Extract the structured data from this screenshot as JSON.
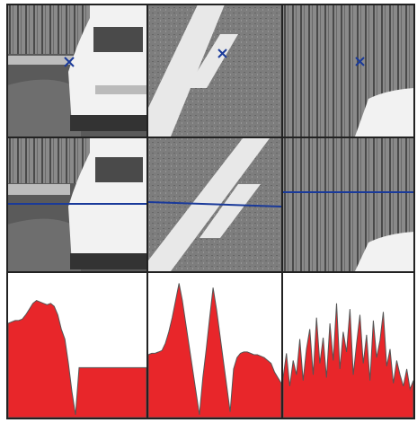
{
  "chart_data": [
    {
      "type": "area",
      "color": "#e8262a",
      "ylim": [
        0,
        100
      ],
      "values": [
        66,
        67,
        68,
        68,
        69,
        72,
        76,
        80,
        82,
        81,
        80,
        79,
        80,
        78,
        72,
        62,
        55,
        38,
        18,
        2,
        35,
        35,
        35,
        35,
        35,
        35,
        35,
        35,
        35,
        35,
        35,
        35,
        35,
        35,
        35,
        35,
        35,
        35,
        35,
        35
      ]
    },
    {
      "type": "area",
      "color": "#e8262a",
      "ylim": [
        0,
        100
      ],
      "values": [
        44,
        45,
        45,
        46,
        47,
        52,
        60,
        70,
        82,
        94,
        82,
        66,
        50,
        34,
        18,
        2,
        28,
        48,
        70,
        91,
        76,
        58,
        40,
        22,
        4,
        34,
        42,
        45,
        46,
        46,
        45,
        44,
        44,
        43,
        42,
        40,
        38,
        32,
        28,
        24
      ]
    },
    {
      "type": "area",
      "color": "#e8262a",
      "ylim": [
        0,
        100
      ],
      "values": [
        28,
        45,
        22,
        40,
        30,
        55,
        26,
        48,
        62,
        30,
        70,
        38,
        56,
        28,
        66,
        40,
        80,
        34,
        60,
        46,
        76,
        30,
        52,
        72,
        38,
        58,
        26,
        68,
        42,
        54,
        74,
        36,
        48,
        24,
        40,
        30,
        22,
        34,
        20,
        26
      ]
    }
  ]
}
